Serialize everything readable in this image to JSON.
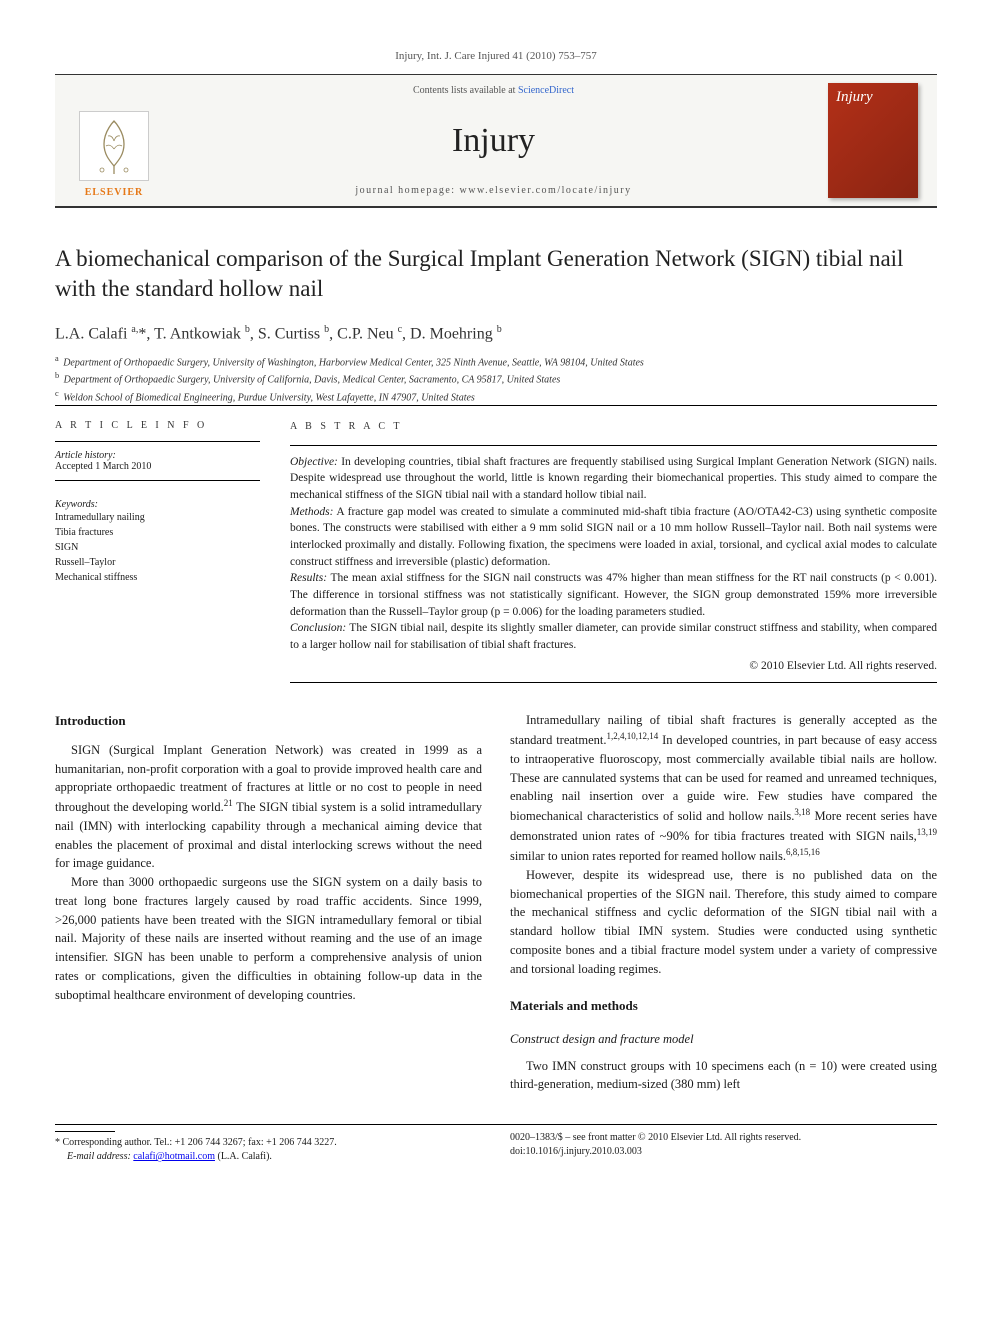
{
  "running_head": "Injury, Int. J. Care Injured 41 (2010) 753–757",
  "banner": {
    "contents_prefix": "Contents lists available at ",
    "contents_link": "ScienceDirect",
    "journal": "Injury",
    "homepage_prefix": "journal homepage: ",
    "homepage_url": "www.elsevier.com/locate/injury",
    "publisher_word": "ELSEVIER",
    "cover_label": "Injury"
  },
  "title": "A biomechanical comparison of the Surgical Implant Generation Network (SIGN) tibial nail with the standard hollow nail",
  "authors_html": "L.A. Calafi <sup>a,</sup>*, T. Antkowiak <sup>b</sup>, S. Curtiss <sup>b</sup>, C.P. Neu <sup>c</sup>, D. Moehring <sup>b</sup>",
  "affiliations": [
    {
      "sup": "a",
      "text": "Department of Orthopaedic Surgery, University of Washington, Harborview Medical Center, 325 Ninth Avenue, Seattle, WA 98104, United States"
    },
    {
      "sup": "b",
      "text": "Department of Orthopaedic Surgery, University of California, Davis, Medical Center, Sacramento, CA 95817, United States"
    },
    {
      "sup": "c",
      "text": "Weldon School of Biomedical Engineering, Purdue University, West Lafayette, IN 47907, United States"
    }
  ],
  "article_info": {
    "heading": "A R T I C L E   I N F O",
    "history_label": "Article history:",
    "history_value": "Accepted 1 March 2010",
    "keywords_label": "Keywords:",
    "keywords": [
      "Intramedullary nailing",
      "Tibia fractures",
      "SIGN",
      "Russell–Taylor",
      "Mechanical stiffness"
    ]
  },
  "abstract": {
    "heading": "A B S T R A C T",
    "sections": [
      {
        "label": "Objective:",
        "text": "In developing countries, tibial shaft fractures are frequently stabilised using Surgical Implant Generation Network (SIGN) nails. Despite widespread use throughout the world, little is known regarding their biomechanical properties. This study aimed to compare the mechanical stiffness of the SIGN tibial nail with a standard hollow tibial nail."
      },
      {
        "label": "Methods:",
        "text": "A fracture gap model was created to simulate a comminuted mid-shaft tibia fracture (AO/OTA42-C3) using synthetic composite bones. The constructs were stabilised with either a 9 mm solid SIGN nail or a 10 mm hollow Russell–Taylor nail. Both nail systems were interlocked proximally and distally. Following fixation, the specimens were loaded in axial, torsional, and cyclical axial modes to calculate construct stiffness and irreversible (plastic) deformation."
      },
      {
        "label": "Results:",
        "text": "The mean axial stiffness for the SIGN nail constructs was 47% higher than mean stiffness for the RT nail constructs (p < 0.001). The difference in torsional stiffness was not statistically significant. However, the SIGN group demonstrated 159% more irreversible deformation than the Russell–Taylor group (p = 0.006) for the loading parameters studied."
      },
      {
        "label": "Conclusion:",
        "text": "The SIGN tibial nail, despite its slightly smaller diameter, can provide similar construct stiffness and stability, when compared to a larger hollow nail for stabilisation of tibial shaft fractures."
      }
    ],
    "copyright": "© 2010 Elsevier Ltd. All rights reserved."
  },
  "intro_heading": "Introduction",
  "intro_paras": [
    "SIGN (Surgical Implant Generation Network) was created in 1999 as a humanitarian, non-profit corporation with a goal to provide improved health care and appropriate orthopaedic treatment of fractures at little or no cost to people in need throughout the developing world.<sup>21</sup> The SIGN tibial system is a solid intramedullary nail (IMN) with interlocking capability through a mechanical aiming device that enables the placement of proximal and distal interlocking screws without the need for image guidance.",
    "More than 3000 orthopaedic surgeons use the SIGN system on a daily basis to treat long bone fractures largely caused by road traffic accidents. Since 1999, >26,000 patients have been treated with the SIGN intramedullary femoral or tibial nail. Majority of these nails are inserted without reaming and the use of an image intensifier. SIGN has been unable to perform a comprehensive analysis of union rates or complications, given the difficulties in obtaining follow-up data in the suboptimal healthcare environment of developing countries."
  ],
  "col2_paras": [
    "Intramedullary nailing of tibial shaft fractures is generally accepted as the standard treatment.<sup>1,2,4,10,12,14</sup> In developed countries, in part because of easy access to intraoperative fluoroscopy, most commercially available tibial nails are hollow. These are cannulated systems that can be used for reamed and unreamed techniques, enabling nail insertion over a guide wire. Few studies have compared the biomechanical characteristics of solid and hollow nails.<sup>3,18</sup> More recent series have demonstrated union rates of ~90% for tibia fractures treated with SIGN nails,<sup>13,19</sup> similar to union rates reported for reamed hollow nails.<sup>6,8,15,16</sup>",
    "However, despite its widespread use, there is no published data on the biomechanical properties of the SIGN nail. Therefore, this study aimed to compare the mechanical stiffness and cyclic deformation of the SIGN tibial nail with a standard hollow tibial IMN system. Studies were conducted using synthetic composite bones and a tibial fracture model system under a variety of compressive and torsional loading regimes."
  ],
  "methods_heading": "Materials and methods",
  "methods_sub": "Construct design and fracture model",
  "methods_para": "Two IMN construct groups with 10 specimens each (n = 10) were created using third-generation, medium-sized (380 mm) left",
  "footnote": {
    "corr": "* Corresponding author. Tel.: +1 206 744 3267; fax: +1 206 744 3227.",
    "email_label": "E-mail address: ",
    "email": "calafi@hotmail.com",
    "email_who": " (L.A. Calafi)."
  },
  "footer_right": {
    "line1": "0020–1383/$ – see front matter © 2010 Elsevier Ltd. All rights reserved.",
    "line2": "doi:10.1016/j.injury.2010.03.003"
  },
  "colors": {
    "publisher_orange": "#e67817",
    "cover_red": "#b33018",
    "link_blue": "#3366cc",
    "text": "#1a1a1a",
    "banner_bg": "#f6f6f3"
  }
}
